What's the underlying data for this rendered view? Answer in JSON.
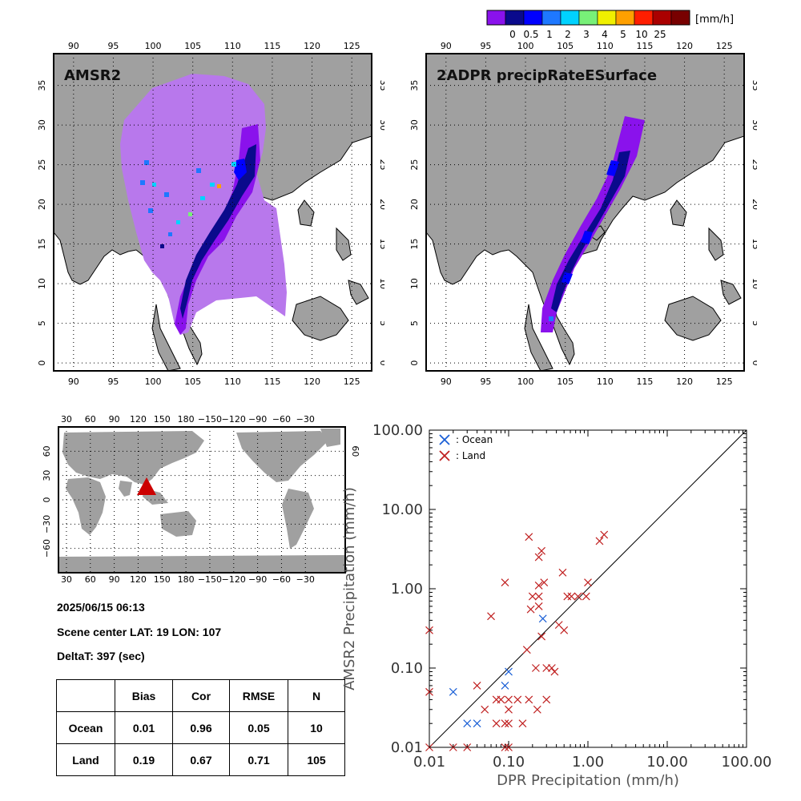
{
  "colorbar": {
    "unit": "[mm/h]",
    "labels": [
      "0",
      "0.5",
      "1",
      "2",
      "3",
      "4",
      "5",
      "10",
      "25"
    ],
    "colors": [
      "#8a12ec",
      "#0a0a8c",
      "#0000ff",
      "#1e78ff",
      "#00d2ff",
      "#78f078",
      "#f0f000",
      "#ffa000",
      "#ff1e00",
      "#aa0000",
      "#780000"
    ]
  },
  "map_left": {
    "title": "AMSR2",
    "lon_ticks": [
      "90",
      "95",
      "100",
      "105",
      "110",
      "115",
      "120",
      "125"
    ],
    "lat_ticks": [
      "0",
      "5",
      "10",
      "15",
      "20",
      "25",
      "30",
      "35"
    ]
  },
  "map_right": {
    "title": "2ADPR precipRateESurface",
    "lon_ticks": [
      "90",
      "95",
      "100",
      "105",
      "110",
      "115",
      "120",
      "125"
    ],
    "lat_ticks": [
      "0",
      "5",
      "10",
      "15",
      "20",
      "25",
      "30",
      "35"
    ]
  },
  "world_map": {
    "top_lon_ticks": [
      "30",
      "60",
      "90",
      "120",
      "150",
      "180",
      "−150",
      "−120",
      "−90",
      "−60",
      "−30"
    ],
    "bottom_lon_ticks": [
      "30",
      "60",
      "90",
      "120",
      "150",
      "180",
      "−150",
      "−120",
      "−90",
      "−60",
      "−30"
    ],
    "lat_ticks": [
      "60",
      "30",
      "0",
      "−30",
      "−60"
    ],
    "right_lat_ticks": [
      "60"
    ],
    "marker_color": "#cc0000"
  },
  "info": {
    "datetime": "2025/06/15 06:13",
    "scene_center": "Scene center LAT: 19   LON: 107",
    "delta_t": "DeltaT:  397 (sec)"
  },
  "stats_table": {
    "headers": [
      "",
      "Bias",
      "Cor",
      "RMSE",
      "N"
    ],
    "rows": [
      {
        "label": "Ocean",
        "bias": "0.01",
        "cor": "0.96",
        "rmse": "0.05",
        "n": "10"
      },
      {
        "label": "Land",
        "bias": "0.19",
        "cor": "0.67",
        "rmse": "0.71",
        "n": "105"
      }
    ]
  },
  "chart_data": {
    "type": "scatter",
    "xlabel": "DPR Precipitation (mm/h)",
    "ylabel": "AMSR2 Precipitation (mm/h)",
    "xscale": "log",
    "yscale": "log",
    "xlim": [
      0.01,
      100
    ],
    "ylim": [
      0.01,
      100
    ],
    "x_tick_labels": [
      "0.01",
      "0.10",
      "1.00",
      "10.00",
      "100.00"
    ],
    "y_tick_labels": [
      "0.01",
      "0.10",
      "1.00",
      "10.00",
      "100.00"
    ],
    "tick_values": [
      0.01,
      0.1,
      1,
      10,
      100
    ],
    "one_to_one_line": true,
    "legend_placement": "top-left",
    "series": [
      {
        "name": ": Ocean",
        "color": "#1a5fd6",
        "points": [
          [
            0.02,
            0.05
          ],
          [
            0.03,
            0.02
          ],
          [
            0.04,
            0.02
          ],
          [
            0.09,
            0.06
          ],
          [
            0.1,
            0.09
          ],
          [
            0.27,
            0.42
          ]
        ]
      },
      {
        "name": ": Land",
        "color": "#c02020",
        "points": [
          [
            0.01,
            0.3
          ],
          [
            0.01,
            0.05
          ],
          [
            0.01,
            0.01
          ],
          [
            0.02,
            0.01
          ],
          [
            0.03,
            0.01
          ],
          [
            0.04,
            0.06
          ],
          [
            0.05,
            0.03
          ],
          [
            0.06,
            0.45
          ],
          [
            0.07,
            0.04
          ],
          [
            0.07,
            0.02
          ],
          [
            0.08,
            0.04
          ],
          [
            0.09,
            0.02
          ],
          [
            0.09,
            0.01
          ],
          [
            0.1,
            0.04
          ],
          [
            0.1,
            0.03
          ],
          [
            0.1,
            0.02
          ],
          [
            0.1,
            0.01
          ],
          [
            0.09,
            1.2
          ],
          [
            0.13,
            0.04
          ],
          [
            0.15,
            0.02
          ],
          [
            0.17,
            0.17
          ],
          [
            0.18,
            4.5
          ],
          [
            0.18,
            0.04
          ],
          [
            0.19,
            0.55
          ],
          [
            0.2,
            0.8
          ],
          [
            0.22,
            0.1
          ],
          [
            0.23,
            0.03
          ],
          [
            0.24,
            1.1
          ],
          [
            0.24,
            0.8
          ],
          [
            0.24,
            2.5
          ],
          [
            0.24,
            0.6
          ],
          [
            0.26,
            3.0
          ],
          [
            0.26,
            0.25
          ],
          [
            0.28,
            1.2
          ],
          [
            0.3,
            0.1
          ],
          [
            0.3,
            0.04
          ],
          [
            0.35,
            0.1
          ],
          [
            0.38,
            0.09
          ],
          [
            0.43,
            0.35
          ],
          [
            0.48,
            1.6
          ],
          [
            0.5,
            0.3
          ],
          [
            0.55,
            0.8
          ],
          [
            0.62,
            0.8
          ],
          [
            0.75,
            0.8
          ],
          [
            0.95,
            0.8
          ],
          [
            1.0,
            1.2
          ],
          [
            1.4,
            4.0
          ],
          [
            1.6,
            4.8
          ]
        ]
      }
    ]
  }
}
